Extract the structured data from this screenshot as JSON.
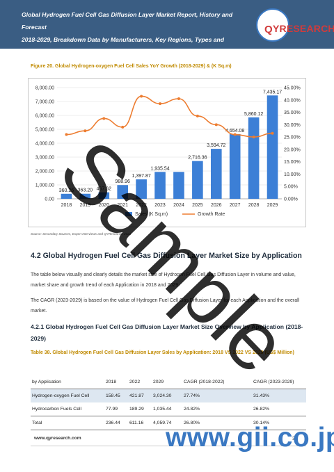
{
  "header": {
    "title_line1": "Global Hydrogen Fuel Cell Gas Diffusion Layer Market Report, History and Forecast",
    "title_line2": "2018-2029, Breakdown Data by Manufacturers, Key Regions, Types and Application",
    "logo_text": "YRESEARCH",
    "logo_q": "Q"
  },
  "figure": {
    "caption": "Figure 20.  Global Hydrogen-oxygen Fuel Cell Sales YoY Growth (2018-2029) & (K Sq.m)",
    "source": "Source: Secondary Sources, Expert Interviews and QYResearch, 2023"
  },
  "chart_data": {
    "type": "bar",
    "categories": [
      "2018",
      "2019",
      "2020",
      "2021",
      "2022",
      "2023",
      "2024",
      "2025",
      "2026",
      "2027",
      "2028",
      "2029"
    ],
    "series": [
      {
        "name": "Sales (K Sq.m)",
        "type": "bar",
        "values": [
          360.26,
          363.2,
          467.62,
          988.96,
          1397.87,
          1935.54,
          1935.54,
          2716.36,
          3594.72,
          4654.08,
          5860.12,
          7435.17
        ],
        "labels": [
          "360.26",
          "363.20",
          "467.62",
          "988.96",
          "1,397.87",
          "1,935.54",
          "",
          "2,716.36",
          "3,594.72",
          "4,654.08",
          "5,860.12",
          "7,435.17"
        ]
      },
      {
        "name": "Growth Rate",
        "type": "line",
        "axis": "right",
        "values": [
          26.0,
          27.5,
          32.5,
          29.0,
          41.5,
          38.5,
          40.5,
          33.5,
          30.0,
          26.0,
          25.0,
          26.5
        ]
      }
    ],
    "y_left_ticks": [
      "0.00",
      "1,000.00",
      "2,000.00",
      "3,000.00",
      "4,000.00",
      "5,000.00",
      "6,000.00",
      "7,000.00",
      "8,000.00"
    ],
    "y_right_ticks": [
      "0.00%",
      "5.00%",
      "10.00%",
      "15.00%",
      "20.00%",
      "25.00%",
      "30.00%",
      "35.00%",
      "40.00%",
      "45.00%"
    ],
    "ylim_left": [
      0,
      8000
    ],
    "ylim_right": [
      0,
      45
    ],
    "grid": true,
    "legend_position": "bottom"
  },
  "section": {
    "heading": "4.2  Global Hydrogen Fuel Cell Gas Diffusion Layer Market Size by Application",
    "para1": "The table below visually and clearly details the market size of Hydrogen Fuel Cell Gas Diffusion Layer in volume and value, market share and growth trend of each Application in 2018 and 2029.",
    "para2": "The CAGR (2023-2029) is based on the value of Hydrogen Fuel Cell Gas Diffusion Layer for each Application and the overall market."
  },
  "subsection": {
    "heading": "4.2.1  Global Hydrogen Fuel Cell Gas Diffusion Layer Market Size Overview by Application (2018-2029)"
  },
  "table": {
    "caption": "Table 38.   Global Hydrogen Fuel Cell Gas Diffusion Layer Sales by Application: 2018 VS 2022 VS 2029 (US$ Million)",
    "headers": [
      "by Application",
      "2018",
      "2022",
      "2029",
      "CAGR (2018-2022)",
      "CAGR (2023-2029)"
    ],
    "rows": [
      [
        "Hydrogen-oxygen Fuel Cell",
        "158.45",
        "421.87",
        "3,024.30",
        "27.74%",
        "31.43%"
      ],
      [
        "Hydrocarbon Fuels Cell",
        "77.99",
        "189.29",
        "1,035.44",
        "24.82%",
        "26.82%"
      ],
      [
        "Total",
        "236.44",
        "611.16",
        "4,059.74",
        "26.80%",
        "30.14%"
      ]
    ]
  },
  "footer": {
    "url": "www.qyresearch.com",
    "page": "34"
  },
  "watermarks": {
    "sample": "Sample",
    "site": "www.gii.co.jp"
  }
}
